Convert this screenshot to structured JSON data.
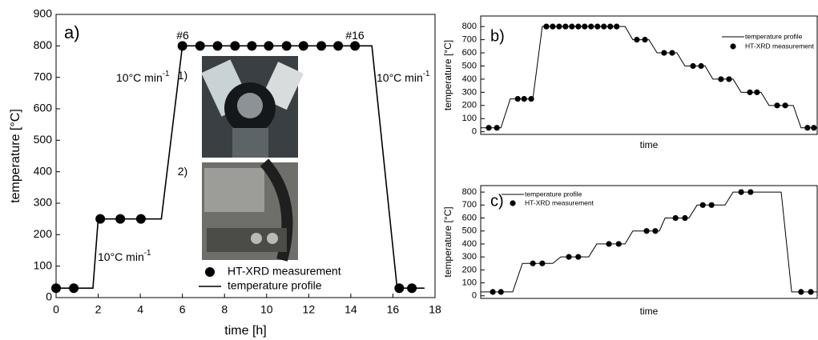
{
  "chart_data": [
    {
      "type": "line",
      "panel_label": "a)",
      "xlabel": "time [h]",
      "ylabel": "temperature [°C]",
      "xlim": [
        0,
        18
      ],
      "xticks": [
        0,
        2,
        4,
        6,
        8,
        10,
        12,
        14,
        16,
        18
      ],
      "ylim": [
        0,
        900
      ],
      "yticks": [
        0,
        100,
        200,
        300,
        400,
        500,
        600,
        700,
        800,
        900
      ],
      "series": [
        {
          "name": "HT-XRD measurement",
          "style": "marker",
          "color": "#000000",
          "x": [
            0,
            0.84,
            2.1,
            3.05,
            4.03,
            6.0,
            6.84,
            7.67,
            8.5,
            9.3,
            10.1,
            10.95,
            11.75,
            12.6,
            13.4,
            14.2,
            16.3,
            16.9
          ],
          "values": [
            30,
            30,
            250,
            250,
            250,
            800,
            800,
            800,
            800,
            800,
            800,
            800,
            800,
            800,
            800,
            800,
            30,
            30
          ]
        },
        {
          "name": "temperature profile",
          "style": "line",
          "color": "#000000",
          "x": [
            0,
            1.75,
            2.0,
            5.0,
            6.0,
            15.0,
            16.2,
            17.5
          ],
          "values": [
            30,
            30,
            250,
            250,
            800,
            800,
            30,
            30
          ]
        }
      ],
      "annotations": [
        {
          "text": "#6"
        },
        {
          "text": "#16"
        },
        {
          "text": "10°C min",
          "sup": "-1"
        },
        {
          "text": "10°C min",
          "sup": "-1"
        },
        {
          "text": "10°C min",
          "sup": "-1"
        },
        {
          "text": "1)"
        },
        {
          "text": "2)"
        }
      ]
    },
    {
      "type": "line",
      "panel_label": "b)",
      "xlabel": "time",
      "ylabel": "temperature [°C]",
      "xlim": [
        0,
        100
      ],
      "ylim": [
        -20,
        880
      ],
      "yticks": [
        0,
        100,
        200,
        300,
        400,
        500,
        600,
        700,
        800
      ],
      "series": [
        {
          "name": "temperature profile",
          "style": "line",
          "color": "#000000",
          "x": [
            0,
            6,
            8.8,
            15.5,
            18.3,
            42.9,
            45.2,
            50,
            52.4,
            58.3,
            60.7,
            66.7,
            69,
            75,
            77.4,
            83.3,
            85.7,
            92.9,
            95.2,
            100
          ],
          "values": [
            30,
            30,
            250,
            250,
            800,
            800,
            700,
            700,
            600,
            600,
            500,
            500,
            400,
            400,
            300,
            300,
            200,
            200,
            30,
            30
          ]
        },
        {
          "name": "HT-XRD measurement",
          "style": "marker",
          "color": "#000000",
          "x": [
            2.4,
            4.8,
            11,
            12.9,
            15,
            19.5,
            21.4,
            23.3,
            25.2,
            27.1,
            29,
            30.9,
            32.8,
            34.7,
            36.6,
            38.5,
            40.4,
            46.4,
            48.8,
            54.5,
            56.9,
            63.1,
            65.5,
            71.4,
            73.8,
            80,
            82.1,
            88.1,
            90.5,
            97.1,
            99
          ],
          "values": [
            30,
            30,
            250,
            250,
            250,
            800,
            800,
            800,
            800,
            800,
            800,
            800,
            800,
            800,
            800,
            800,
            800,
            700,
            700,
            600,
            600,
            500,
            500,
            400,
            400,
            300,
            300,
            200,
            200,
            30,
            30
          ]
        }
      ]
    },
    {
      "type": "line",
      "panel_label": "c)",
      "xlabel": "time",
      "ylabel": "temperature [°C]",
      "xlim": [
        0,
        100
      ],
      "ylim": [
        -20,
        850
      ],
      "yticks": [
        0,
        100,
        200,
        300,
        400,
        500,
        600,
        700,
        800
      ],
      "series": [
        {
          "name": "temperature profile",
          "style": "line",
          "color": "#000000",
          "x": [
            0,
            9.5,
            12.4,
            21.4,
            23.8,
            32.1,
            34.5,
            42.9,
            45.2,
            53.1,
            54.8,
            61.9,
            64.3,
            72.6,
            75,
            89.3,
            92.4,
            100
          ],
          "values": [
            30,
            30,
            250,
            250,
            300,
            300,
            400,
            400,
            500,
            500,
            600,
            600,
            700,
            700,
            800,
            800,
            30,
            30
          ]
        },
        {
          "name": "HT-XRD measurement",
          "style": "marker",
          "color": "#000000",
          "x": [
            3.6,
            6,
            15.5,
            18.3,
            26.2,
            29,
            38.1,
            41,
            49.3,
            51.9,
            57.9,
            60.7,
            66,
            68.6,
            77.4,
            80.2,
            95.2,
            98.1
          ],
          "values": [
            30,
            30,
            250,
            250,
            300,
            300,
            400,
            400,
            500,
            500,
            600,
            600,
            700,
            700,
            800,
            800,
            30,
            30
          ]
        }
      ]
    }
  ]
}
